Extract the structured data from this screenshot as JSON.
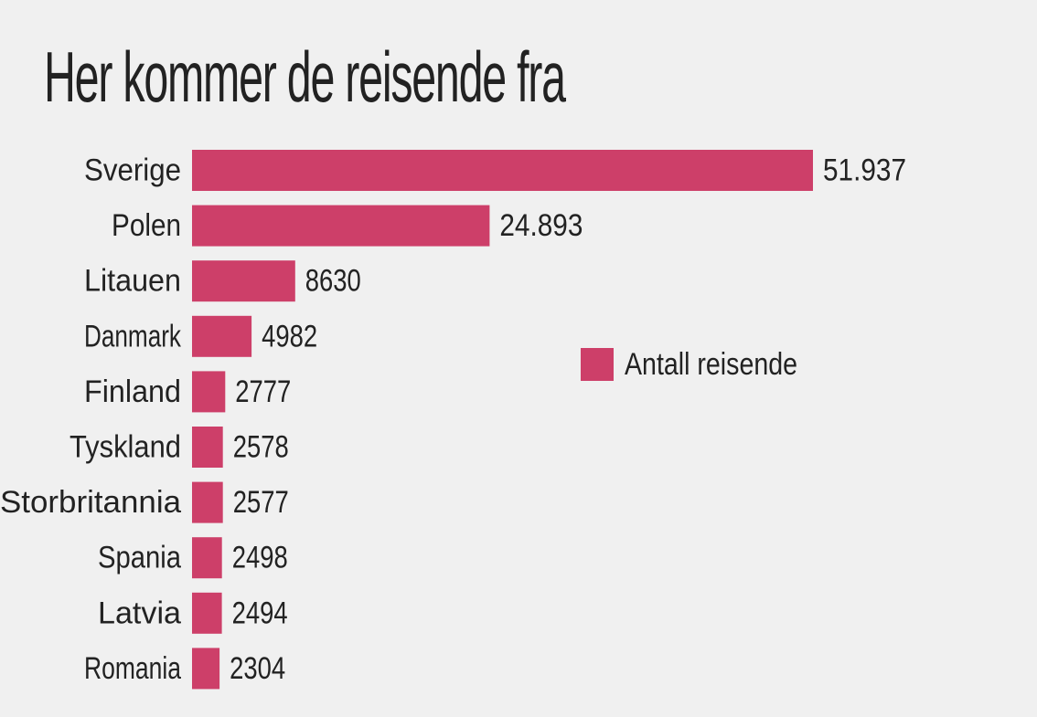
{
  "chart_data": {
    "type": "bar",
    "orientation": "horizontal",
    "title": "Her kommer de reisende fra",
    "categories": [
      "Sverige",
      "Polen",
      "Litauen",
      "Danmark",
      "Finland",
      "Tyskland",
      "Storbritannia",
      "Spania",
      "Latvia",
      "Romania"
    ],
    "series": [
      {
        "name": "Antall reisende",
        "values": [
          51937,
          24893,
          8630,
          4982,
          2777,
          2578,
          2577,
          2498,
          2494,
          2304
        ],
        "labels": [
          "51.937",
          "24.893",
          "8630",
          "4982",
          "2777",
          "2578",
          "2577",
          "2498",
          "2494",
          "2304"
        ]
      }
    ],
    "xlim": [
      0,
      51937
    ],
    "grid": false,
    "legend_position": "right",
    "bar_color": "#cd3f69"
  }
}
